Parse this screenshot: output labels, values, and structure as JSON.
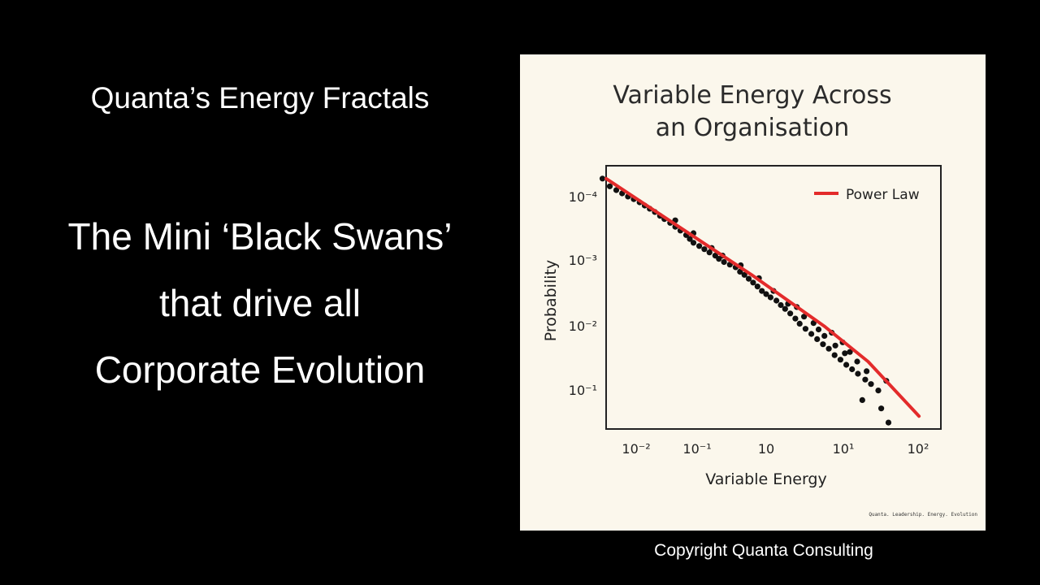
{
  "slide": {
    "heading": "Quanta’s Energy Fractals",
    "tagline_lines": [
      "The Mini ‘Black Swans’",
      "that drive all",
      "Corporate Evolution"
    ],
    "copyright": "Copyright Quanta Consulting"
  },
  "colors": {
    "background": "#000000",
    "panel": "#fbf7ec",
    "fit_line": "#e32b2b",
    "points": "#111111"
  },
  "chart_data": {
    "type": "scatter",
    "title_lines": [
      "Variable Energy Across",
      "an Organisation"
    ],
    "xlabel": "Variable Energy",
    "ylabel": "Probability",
    "x_scale": "log",
    "y_scale": "log",
    "x_ticks": [
      "10⁻²",
      "10⁻¹",
      "10",
      "10¹",
      "10²"
    ],
    "y_ticks": [
      "10⁻⁴",
      "10⁻³",
      "10⁻²",
      "10⁻¹"
    ],
    "xlim": [
      0,
      4.6
    ],
    "ylim": [
      -4.5,
      -0.4
    ],
    "grid": false,
    "legend": {
      "position": "top-right",
      "entries": [
        {
          "label": "Power Law",
          "marker": "line"
        }
      ]
    },
    "footer_text": "Quanta. Leadership. Energy. Evolution",
    "series": [
      {
        "kind": "points",
        "points": [
          [
            -0.05,
            -4.3
          ],
          [
            0.05,
            -4.18
          ],
          [
            0.14,
            -4.12
          ],
          [
            0.22,
            -4.07
          ],
          [
            0.3,
            -4.02
          ],
          [
            0.38,
            -3.98
          ],
          [
            0.46,
            -3.93
          ],
          [
            0.53,
            -3.88
          ],
          [
            0.6,
            -3.83
          ],
          [
            0.67,
            -3.78
          ],
          [
            0.74,
            -3.72
          ],
          [
            0.8,
            -3.67
          ],
          [
            0.88,
            -3.61
          ],
          [
            0.95,
            -3.55
          ],
          [
            1.02,
            -3.49
          ],
          [
            1.1,
            -3.42
          ],
          [
            1.15,
            -3.36
          ],
          [
            1.2,
            -3.3
          ],
          [
            1.28,
            -3.25
          ],
          [
            1.35,
            -3.2
          ],
          [
            1.42,
            -3.15
          ],
          [
            1.5,
            -3.1
          ],
          [
            1.55,
            -3.05
          ],
          [
            1.62,
            -3.0
          ],
          [
            1.7,
            -2.96
          ],
          [
            1.78,
            -2.92
          ],
          [
            1.84,
            -2.85
          ],
          [
            1.9,
            -2.8
          ],
          [
            1.96,
            -2.74
          ],
          [
            2.02,
            -2.68
          ],
          [
            2.08,
            -2.62
          ],
          [
            2.14,
            -2.55
          ],
          [
            2.2,
            -2.5
          ],
          [
            2.26,
            -2.45
          ],
          [
            2.34,
            -2.4
          ],
          [
            2.4,
            -2.33
          ],
          [
            2.46,
            -2.27
          ],
          [
            2.53,
            -2.2
          ],
          [
            2.6,
            -2.12
          ],
          [
            2.66,
            -2.04
          ],
          [
            2.74,
            -1.96
          ],
          [
            2.82,
            -1.88
          ],
          [
            2.9,
            -1.8
          ],
          [
            2.98,
            -1.72
          ],
          [
            3.06,
            -1.65
          ],
          [
            3.14,
            -1.55
          ],
          [
            3.22,
            -1.48
          ],
          [
            3.3,
            -1.4
          ],
          [
            3.38,
            -1.33
          ],
          [
            3.46,
            -1.26
          ],
          [
            3.56,
            -1.17
          ],
          [
            3.64,
            -1.1
          ],
          [
            3.74,
            -1.0
          ],
          [
            0.95,
            -3.65
          ],
          [
            1.2,
            -3.45
          ],
          [
            1.45,
            -3.22
          ],
          [
            1.6,
            -3.1
          ],
          [
            1.85,
            -2.95
          ],
          [
            2.1,
            -2.75
          ],
          [
            2.3,
            -2.55
          ],
          [
            2.5,
            -2.35
          ],
          [
            2.62,
            -2.3
          ],
          [
            2.72,
            -2.15
          ],
          [
            2.85,
            -2.05
          ],
          [
            2.92,
            -1.95
          ],
          [
            3.0,
            -1.85
          ],
          [
            3.15,
            -1.7
          ],
          [
            3.28,
            -1.58
          ],
          [
            3.1,
            -1.9
          ],
          [
            3.25,
            -1.75
          ],
          [
            3.35,
            -1.6
          ],
          [
            3.45,
            -1.45
          ],
          [
            3.58,
            -1.3
          ],
          [
            3.85,
            -1.15
          ],
          [
            3.52,
            -0.85
          ],
          [
            3.78,
            -0.72
          ],
          [
            3.88,
            -0.5
          ]
        ]
      },
      {
        "kind": "fit",
        "name": "Power Law",
        "points": [
          [
            0.0,
            -4.3
          ],
          [
            1.0,
            -3.55
          ],
          [
            2.0,
            -2.8
          ],
          [
            3.0,
            -2.0
          ],
          [
            3.6,
            -1.45
          ],
          [
            4.3,
            -0.6
          ]
        ]
      }
    ]
  }
}
